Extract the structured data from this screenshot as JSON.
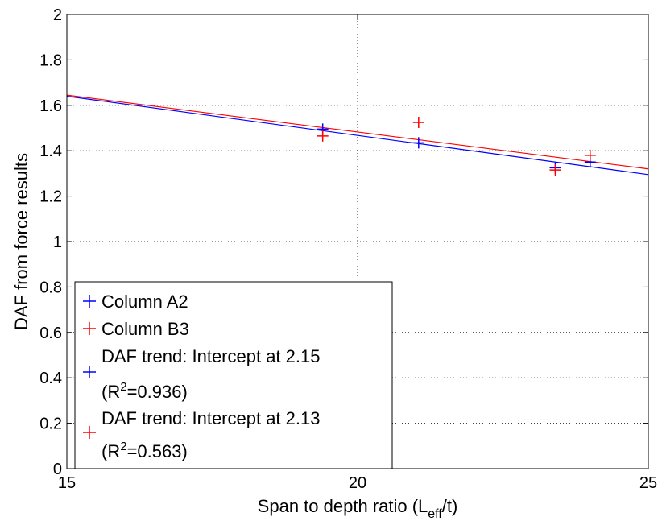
{
  "chart_data": {
    "type": "scatter",
    "title": "",
    "xlabel": {
      "main": "Span to depth ratio (L",
      "sub": "eff",
      "tail": "/t)"
    },
    "ylabel": "DAF from force results",
    "xlim": [
      15,
      25
    ],
    "ylim": [
      0,
      2
    ],
    "xticks": [
      15,
      20,
      25
    ],
    "xtick_labels": [
      "15",
      "20",
      "25"
    ],
    "yticks": [
      0,
      0.2,
      0.4,
      0.6,
      0.8,
      1,
      1.2,
      1.4,
      1.6,
      1.8,
      2
    ],
    "ytick_labels": [
      "0",
      "0.2",
      "0.4",
      "0.6",
      "0.8",
      "1",
      "1.2",
      "1.4",
      "1.6",
      "1.8",
      "2"
    ],
    "grid": "dotted",
    "legend_position": "bottom-left",
    "series": [
      {
        "name": "Column A2",
        "kind": "points",
        "marker": "+",
        "color": "#0000ff",
        "x": [
          19.4,
          21.05,
          23.4,
          24.0
        ],
        "y": [
          1.495,
          1.435,
          1.325,
          1.35
        ]
      },
      {
        "name": "Column B3",
        "kind": "points",
        "marker": "+",
        "color": "#ff0000",
        "x": [
          19.4,
          21.05,
          23.4,
          24.0
        ],
        "y": [
          1.465,
          1.525,
          1.315,
          1.38
        ]
      },
      {
        "name": "DAF trend: Intercept at 2.15",
        "kind": "line",
        "color": "#0000ff",
        "r2_label": "(R",
        "r2_sup": "2",
        "r2_value": "=0.936)",
        "x": [
          15,
          25
        ],
        "y": [
          1.64,
          1.295
        ]
      },
      {
        "name": "DAF trend: Intercept at 2.13",
        "kind": "line",
        "color": "#ff0000",
        "r2_label": "(R",
        "r2_sup": "2",
        "r2_value": "=0.563)",
        "x": [
          15,
          25
        ],
        "y": [
          1.645,
          1.32
        ]
      }
    ]
  }
}
